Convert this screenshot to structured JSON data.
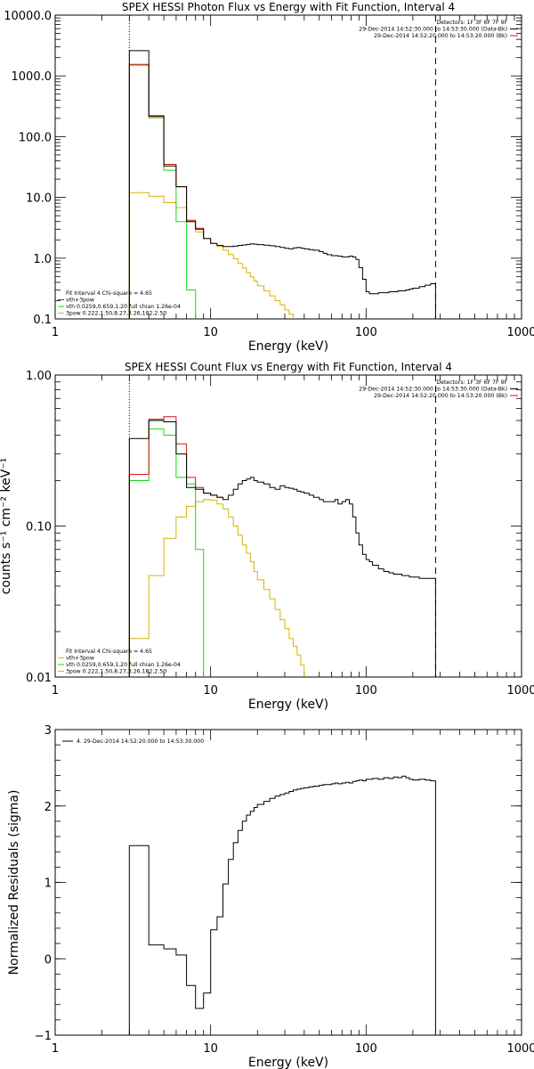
{
  "chart_data": [
    {
      "type": "line",
      "title": "SPEX HESSI Photon Flux vs Energy with Fit Function, Interval 4",
      "xlabel": "Energy (keV)",
      "ylabel": "",
      "xscale": "log",
      "yscale": "log",
      "xlim": [
        1,
        1000
      ],
      "ylim": [
        0.1,
        10000
      ],
      "xticks": [
        1,
        10,
        100,
        1000
      ],
      "xticklabels": [
        "1",
        "10",
        "100",
        "1000"
      ],
      "yticks": [
        0.1,
        1,
        10,
        100,
        1000,
        10000
      ],
      "yticklabels": [
        "0.1",
        "1.0",
        "10.0",
        "100.0",
        "1000.0",
        "10000.0"
      ],
      "vline_dotted": 3,
      "vline_dashed": 280,
      "legend_top": [
        {
          "text": "Detectors: 1F 3F 6F 7F 9F",
          "color": ""
        },
        {
          "text": "29-Dec-2014 14:52:30.000 to 14:53:30.000 (Data-Bk)",
          "color": "#000000"
        },
        {
          "text": "29-Dec-2014 14:52:20.000 to 14:53:20.000 (Bk)",
          "color": "#d1007a"
        }
      ],
      "legend_bottom": [
        {
          "text": "Fit Interval  4    Chi-square = 4.65",
          "color": ""
        },
        {
          "text": "vth+3pow",
          "color": "#d81414"
        },
        {
          "text": "vth 0.0259,0.659,1.20  full chian 1.26e-04",
          "color": "#18d818"
        },
        {
          "text": "3pow 0.222,1.50,8.27,3.26,182,2.50",
          "color": "#d8b400"
        }
      ],
      "series": [
        {
          "name": "Data-Bk",
          "color": "#000000",
          "x": [
            3,
            4,
            5,
            6,
            7,
            8,
            9,
            10,
            11,
            12,
            13,
            14,
            15,
            16,
            17,
            18,
            19,
            20,
            22,
            24,
            26,
            28,
            30,
            32,
            34,
            36,
            38,
            40,
            43,
            46,
            50,
            53,
            56,
            60,
            63,
            66,
            70,
            74,
            78,
            82,
            86,
            90,
            95,
            100,
            105,
            110,
            120,
            130,
            140,
            150,
            160,
            170,
            180,
            190,
            200,
            220,
            240,
            260,
            280
          ],
          "y": [
            2600,
            220,
            33,
            15,
            4.0,
            3.0,
            2.1,
            1.75,
            1.62,
            1.55,
            1.55,
            1.58,
            1.62,
            1.65,
            1.68,
            1.72,
            1.7,
            1.67,
            1.63,
            1.6,
            1.55,
            1.5,
            1.45,
            1.42,
            1.48,
            1.5,
            1.46,
            1.42,
            1.38,
            1.35,
            1.28,
            1.2,
            1.14,
            1.1,
            1.1,
            1.08,
            1.05,
            1.05,
            1.08,
            1.05,
            0.95,
            0.7,
            0.45,
            0.28,
            0.26,
            0.26,
            0.27,
            0.27,
            0.28,
            0.28,
            0.29,
            0.29,
            0.3,
            0.31,
            0.32,
            0.34,
            0.36,
            0.38,
            0.4
          ]
        },
        {
          "name": "vth+3pow",
          "color": "#d81414",
          "x": [
            3,
            4,
            5,
            6,
            7,
            8,
            9
          ],
          "y": [
            1550,
            215,
            35,
            15,
            4.2,
            3.1,
            2.1
          ]
        },
        {
          "name": "vth",
          "color": "#18d818",
          "x": [
            3,
            4,
            5,
            6,
            7,
            8
          ],
          "y": [
            1500,
            205,
            28,
            4.0,
            0.3,
            0.1
          ]
        },
        {
          "name": "3pow",
          "color": "#d8b400",
          "x": [
            3,
            4,
            5,
            6,
            7,
            8,
            9,
            10,
            11,
            12,
            13,
            14,
            15,
            16,
            17,
            18,
            19,
            20,
            22,
            24,
            26,
            28,
            30,
            32,
            34
          ],
          "y": [
            12,
            10.5,
            8.2,
            6.8,
            4.0,
            2.7,
            2.1,
            1.75,
            1.55,
            1.35,
            1.15,
            0.98,
            0.82,
            0.69,
            0.58,
            0.49,
            0.42,
            0.35,
            0.29,
            0.24,
            0.2,
            0.17,
            0.14,
            0.12,
            0.1
          ]
        }
      ]
    },
    {
      "type": "line",
      "title": "SPEX HESSI Count Flux vs Energy with Fit Function, Interval 4",
      "xlabel": "Energy (keV)",
      "ylabel": "counts s⁻¹ cm⁻² keV⁻¹",
      "xscale": "log",
      "yscale": "log",
      "xlim": [
        1,
        1000
      ],
      "ylim": [
        0.01,
        1
      ],
      "xticks": [
        1,
        10,
        100,
        1000
      ],
      "xticklabels": [
        "1",
        "10",
        "100",
        "1000"
      ],
      "yticks": [
        0.01,
        0.1,
        1
      ],
      "yticklabels": [
        "0.01",
        "0.10",
        "1.00"
      ],
      "vline_dotted": 3,
      "vline_dashed": 280,
      "legend_top": [
        {
          "text": "Detectors: 1F 3F 6F 7F 9F",
          "color": ""
        },
        {
          "text": "29-Dec-2014 14:52:30.000 to 14:53:30.000 (Data-Bk)",
          "color": "#000000"
        },
        {
          "text": "29-Dec-2014 14:52:20.000 to 14:53:20.000 (Bk)",
          "color": "#d1007a"
        }
      ],
      "legend_bottom": [
        {
          "text": "Fit Interval  4    Chi-square = 4.65",
          "color": ""
        },
        {
          "text": "vth+3pow",
          "color": "#d8b400"
        },
        {
          "text": "vth 0.0259,0.659,1.20  full chian 1.26e-04",
          "color": "#18d818"
        },
        {
          "text": "3pow 0.222,1.50,8.27,3.26,182,2.50",
          "color": "#d8b400"
        }
      ],
      "series": [
        {
          "name": "Data-Bk",
          "color": "#000000",
          "x": [
            3,
            4,
            5,
            6,
            7,
            8,
            9,
            10,
            11,
            12,
            13,
            14,
            15,
            16,
            17,
            18,
            19,
            20,
            22,
            24,
            26,
            28,
            30,
            32,
            34,
            36,
            38,
            40,
            43,
            46,
            50,
            53,
            56,
            60,
            63,
            66,
            70,
            74,
            78,
            82,
            86,
            90,
            95,
            100,
            105,
            110,
            120,
            130,
            140,
            150,
            160,
            170,
            180,
            190,
            200,
            220,
            240,
            260,
            280
          ],
          "y": [
            0.38,
            0.5,
            0.49,
            0.3,
            0.18,
            0.175,
            0.165,
            0.16,
            0.155,
            0.15,
            0.16,
            0.175,
            0.19,
            0.2,
            0.205,
            0.21,
            0.2,
            0.195,
            0.19,
            0.18,
            0.175,
            0.185,
            0.18,
            0.178,
            0.175,
            0.17,
            0.168,
            0.165,
            0.16,
            0.155,
            0.15,
            0.145,
            0.145,
            0.145,
            0.15,
            0.14,
            0.145,
            0.15,
            0.14,
            0.115,
            0.09,
            0.075,
            0.065,
            0.06,
            0.058,
            0.055,
            0.052,
            0.05,
            0.049,
            0.048,
            0.048,
            0.047,
            0.047,
            0.046,
            0.046,
            0.045,
            0.045,
            0.045,
            0.045
          ]
        },
        {
          "name": "vth+3pow",
          "color": "#d81414",
          "x": [
            3,
            4,
            5,
            6,
            7,
            8,
            9,
            10,
            11,
            12
          ],
          "y": [
            0.22,
            0.51,
            0.53,
            0.35,
            0.21,
            0.18,
            0.165,
            0.16,
            0.155,
            0.15
          ]
        },
        {
          "name": "vth",
          "color": "#18d818",
          "x": [
            3,
            4,
            5,
            6,
            7,
            8,
            9
          ],
          "y": [
            0.2,
            0.44,
            0.4,
            0.21,
            0.19,
            0.07,
            0.01
          ]
        },
        {
          "name": "3pow",
          "color": "#d8b400",
          "x": [
            3,
            4,
            5,
            6,
            7,
            8,
            9,
            10,
            11,
            12,
            13,
            14,
            15,
            16,
            17,
            18,
            19,
            20,
            22,
            24,
            26,
            28,
            30,
            32,
            34,
            36,
            38,
            40
          ],
          "y": [
            0.018,
            0.047,
            0.083,
            0.115,
            0.135,
            0.145,
            0.15,
            0.148,
            0.14,
            0.13,
            0.115,
            0.1,
            0.087,
            0.075,
            0.066,
            0.058,
            0.05,
            0.044,
            0.038,
            0.033,
            0.028,
            0.024,
            0.021,
            0.018,
            0.016,
            0.014,
            0.012,
            0.01
          ]
        }
      ]
    },
    {
      "type": "line",
      "title": "",
      "xlabel": "Energy (keV)",
      "ylabel": "Normalized Residuals (sigma)",
      "xscale": "log",
      "yscale": "linear",
      "xlim": [
        1,
        1000
      ],
      "ylim": [
        -1,
        3
      ],
      "xticks": [
        1,
        10,
        100,
        1000
      ],
      "xticklabels": [
        "1",
        "10",
        "100",
        "1000"
      ],
      "yticks": [
        -1,
        0,
        1,
        2,
        3
      ],
      "yticklabels": [
        "−1",
        "0",
        "1",
        "2",
        "3"
      ],
      "legend_top_left": [
        {
          "text": "4. 29-Dec-2014 14:52:20.000 to 14:53:30.000",
          "color": "#000000"
        }
      ],
      "series": [
        {
          "name": "Residuals",
          "color": "#000000",
          "x": [
            3,
            4,
            5,
            6,
            7,
            8,
            9,
            10,
            11,
            12,
            13,
            14,
            15,
            16,
            17,
            18,
            19,
            20,
            22,
            24,
            26,
            28,
            30,
            32,
            34,
            36,
            38,
            40,
            43,
            46,
            50,
            53,
            56,
            60,
            63,
            66,
            70,
            74,
            78,
            82,
            86,
            90,
            95,
            100,
            110,
            120,
            130,
            140,
            150,
            160,
            170,
            180,
            190,
            200,
            220,
            240,
            260,
            280
          ],
          "y": [
            1.48,
            0.18,
            0.13,
            0.05,
            -0.35,
            -0.65,
            -0.45,
            0.38,
            0.55,
            0.98,
            1.3,
            1.52,
            1.68,
            1.8,
            1.88,
            1.93,
            1.98,
            2.02,
            2.06,
            2.1,
            2.13,
            2.15,
            2.17,
            2.19,
            2.21,
            2.22,
            2.23,
            2.24,
            2.25,
            2.26,
            2.27,
            2.28,
            2.28,
            2.29,
            2.3,
            2.29,
            2.3,
            2.31,
            2.3,
            2.32,
            2.33,
            2.34,
            2.33,
            2.35,
            2.36,
            2.35,
            2.37,
            2.36,
            2.38,
            2.37,
            2.39,
            2.37,
            2.35,
            2.34,
            2.35,
            2.34,
            2.33,
            2.32
          ]
        }
      ]
    }
  ]
}
